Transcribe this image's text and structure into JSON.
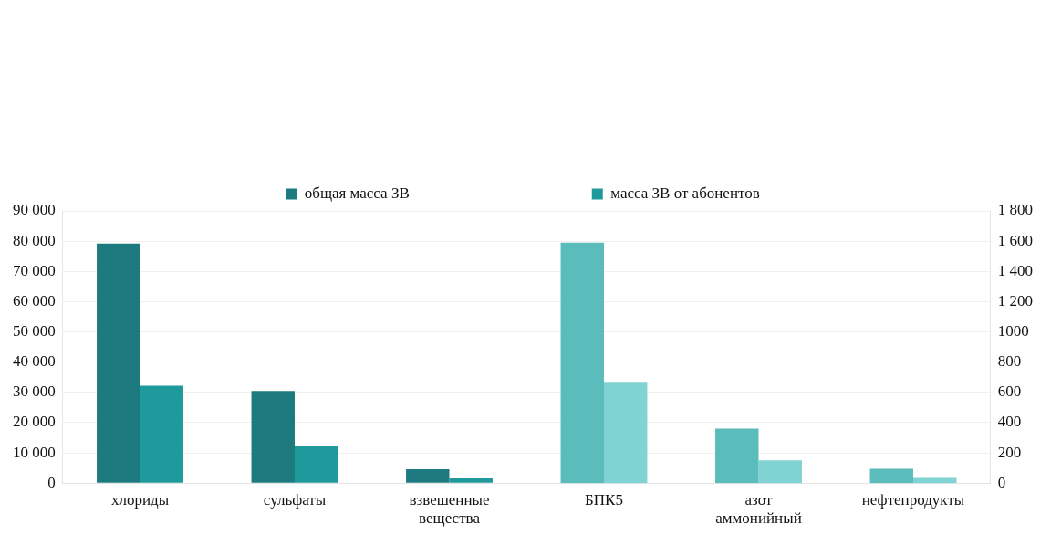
{
  "chart_data": {
    "type": "bar",
    "categories": [
      "хлориды",
      "сульфаты",
      "взвешенные вещества",
      "БПК5",
      "азот аммонийный",
      "нефтепродукты"
    ],
    "series": [
      {
        "name": "общая масса ЗВ",
        "color": "#1d7b80",
        "values": [
          79200,
          30500,
          4600,
          null,
          null,
          null
        ]
      },
      {
        "name": "масса ЗВ от абонентов",
        "color": "#1f9a9c",
        "values": [
          32200,
          12300,
          1600,
          null,
          null,
          null
        ]
      },
      {
        "color": "#5bbcbc",
        "axis": "y2",
        "values": [
          null,
          null,
          null,
          1590,
          360,
          95
        ]
      },
      {
        "color": "#80d3d3",
        "axis": "y2",
        "values": [
          null,
          null,
          null,
          670,
          150,
          35
        ]
      }
    ],
    "ylim": [
      0,
      90000
    ],
    "yticks": [
      {
        "value": 0,
        "label": "0"
      },
      {
        "value": 10000,
        "label": "10 000"
      },
      {
        "value": 20000,
        "label": "20 000"
      },
      {
        "value": 30000,
        "label": "30 000"
      },
      {
        "value": 40000,
        "label": "40 000"
      },
      {
        "value": 50000,
        "label": "50 000"
      },
      {
        "value": 60000,
        "label": "60 000"
      },
      {
        "value": 70000,
        "label": "70 000"
      },
      {
        "value": 80000,
        "label": "80 000"
      },
      {
        "value": 90000,
        "label": "90 000"
      }
    ],
    "y2lim": [
      0,
      1800
    ],
    "y2ticks": [
      0,
      200,
      400,
      600,
      800,
      1000,
      {
        "value": 1200,
        "label": "1 200"
      },
      {
        "value": 1400,
        "label": "1 400"
      },
      {
        "value": 1600,
        "label": "1 600"
      },
      {
        "value": 1800,
        "label": "1 800"
      }
    ],
    "grid": "y",
    "legend": "top"
  }
}
